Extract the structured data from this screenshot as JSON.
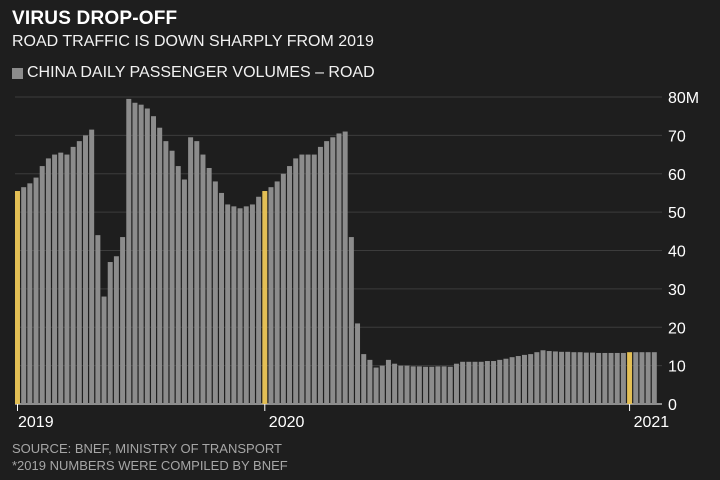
{
  "header": {
    "title": "VIRUS DROP-OFF",
    "subtitle": "ROAD TRAFFIC IS DOWN SHARPLY FROM 2019"
  },
  "footer": {
    "source": "SOURCE: BNEF, MINISTRY OF TRANSPORT",
    "note": "*2019 NUMBERS WERE COMPILED BY BNEF"
  },
  "colors": {
    "background": "#1e1e1e",
    "bar": "#8c8c8c",
    "highlight": "#e3bf55",
    "grid": "#3c3c3c"
  },
  "chart_data": {
    "type": "bar",
    "title": "VIRUS DROP-OFF",
    "subtitle": "ROAD TRAFFIC IS DOWN SHARPLY FROM 2019",
    "legend": [
      "CHINA DAILY PASSENGER VOLUMES – ROAD"
    ],
    "legend_position": "top-left",
    "ylim": [
      0,
      80
    ],
    "y_ticks": [
      0,
      10,
      20,
      30,
      40,
      50,
      60,
      70,
      80
    ],
    "y_tick_labels": [
      "0",
      "10",
      "20",
      "30",
      "40",
      "50",
      "60",
      "70",
      "80M"
    ],
    "y_axis_side": "right",
    "grid": true,
    "x_tick_labels": [
      {
        "label": "2019",
        "index": 0
      },
      {
        "label": "2020",
        "index": 40
      },
      {
        "label": "2021",
        "index": 99
      }
    ],
    "highlight_indices": [
      0,
      40,
      99
    ],
    "values": [
      55.5,
      56.5,
      57.5,
      59,
      62,
      64,
      65,
      65.5,
      65,
      67,
      68.5,
      70,
      71.5,
      44,
      28,
      37,
      38.5,
      43.5,
      79.5,
      78.5,
      78,
      77,
      75,
      72,
      68.5,
      66,
      62,
      58.5,
      69.5,
      68.5,
      65,
      61.5,
      58,
      55,
      52,
      51.5,
      51,
      51.5,
      52,
      54,
      55.5,
      56.5,
      58,
      60,
      62,
      64,
      65,
      65,
      65,
      67,
      68.5,
      69.5,
      70.5,
      71,
      43.5,
      21,
      13,
      11.5,
      9.5,
      10,
      11.5,
      10.5,
      10,
      10,
      9.8,
      9.8,
      9.7,
      9.7,
      9.8,
      9.8,
      9.7,
      10.5,
      11,
      11,
      11,
      11,
      11.2,
      11.2,
      11.5,
      11.8,
      12.2,
      12.5,
      12.8,
      13,
      13.5,
      14,
      13.8,
      13.7,
      13.6,
      13.6,
      13.5,
      13.5,
      13.4,
      13.4,
      13.3,
      13.3,
      13.3,
      13.3,
      13.3,
      13.5,
      13.5,
      13.5,
      13.5,
      13.5
    ]
  }
}
